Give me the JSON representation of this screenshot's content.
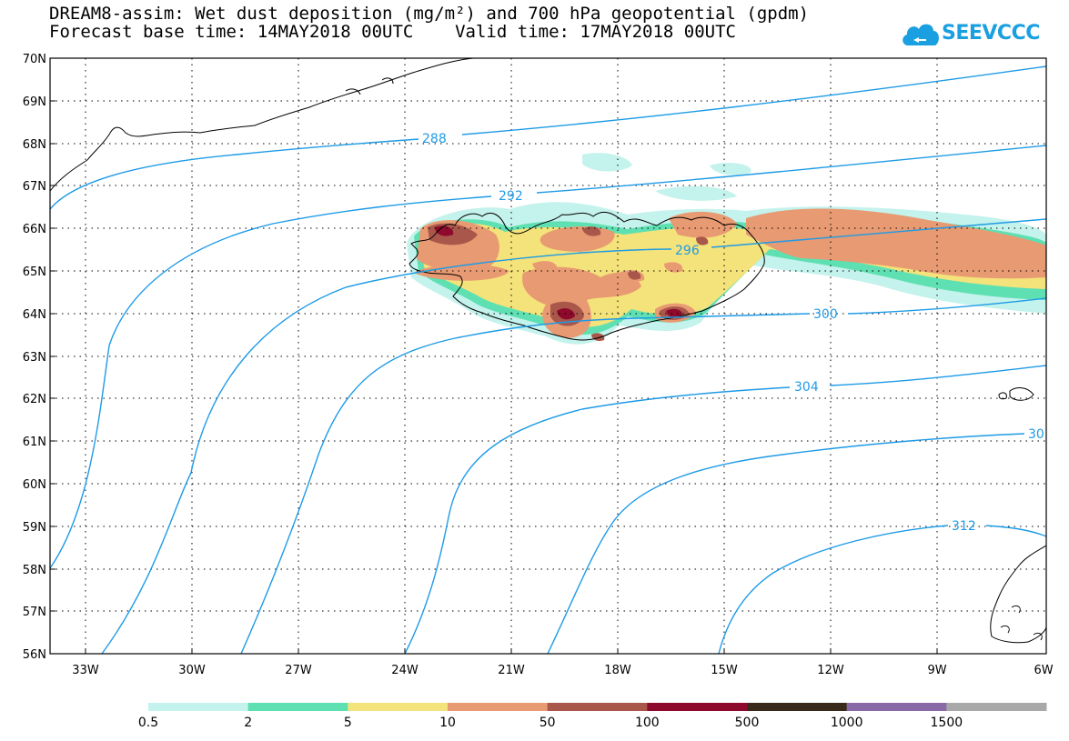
{
  "title_line1": "DREAM8-assim: Wet dust deposition (mg/m²) and 700 hPa geopotential (gpdm)",
  "title_line2": "Forecast base time: 14MAY2018 00UTC    Valid time: 17MAY2018 00UTC",
  "logo": {
    "icon": "cloud-icon",
    "text": "SEEVCCC",
    "color": "#1aa0e0"
  },
  "map": {
    "lon_range": [
      -34.5,
      -6
    ],
    "lat_range": [
      56,
      70
    ],
    "lat_labels": [
      "70N",
      "69N",
      "68N",
      "67N",
      "66N",
      "65N",
      "64N",
      "63N",
      "62N",
      "61N",
      "60N",
      "59N",
      "58N",
      "57N",
      "56N"
    ],
    "lon_labels": [
      "33W",
      "30W",
      "27W",
      "24W",
      "21W",
      "18W",
      "15W",
      "12W",
      "9W",
      "6W"
    ],
    "lon_ticks": [
      -33,
      -30,
      -27,
      -24,
      -21,
      -18,
      -15,
      -12,
      -9,
      -6
    ],
    "grid": "dotted",
    "contour_color": "#1e9be6",
    "contour_labels": [
      "288",
      "292",
      "296",
      "300",
      "304",
      "30",
      "312"
    ]
  },
  "colorbar": {
    "labels": [
      "0.5",
      "2",
      "5",
      "10",
      "50",
      "100",
      "500",
      "1000",
      "1500"
    ],
    "colors": [
      "#c4f2ec",
      "#5ee0b2",
      "#f4e27a",
      "#e89a72",
      "#a8574a",
      "#8e0a2c",
      "#3a2a1c",
      "#8a6aa6",
      "#a8a8a8"
    ]
  }
}
